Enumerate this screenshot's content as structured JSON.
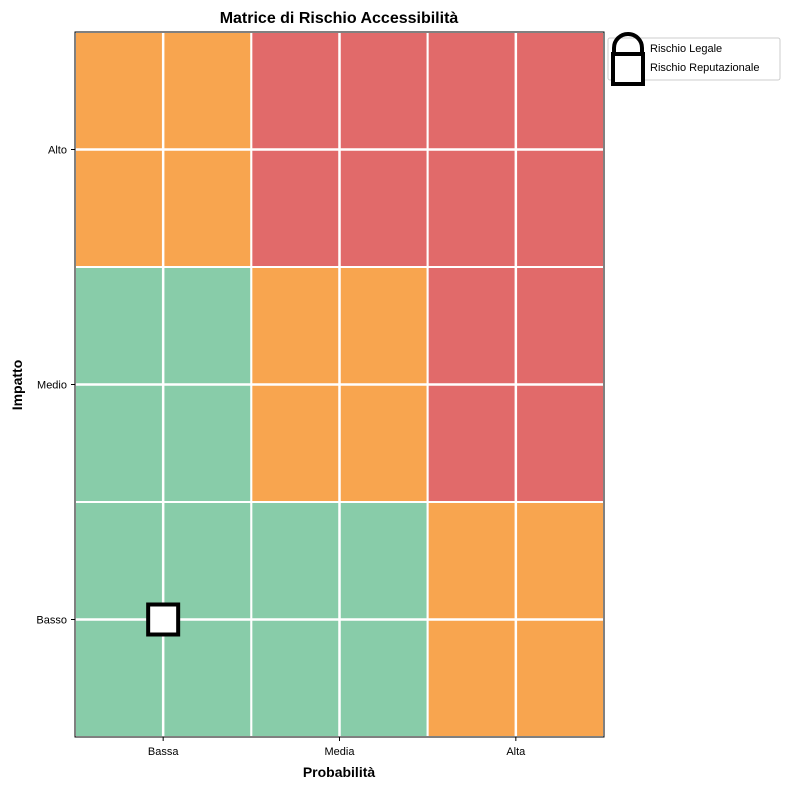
{
  "chart_data": {
    "type": "heatmap",
    "title": "Matrice di Rischio Accessibilità",
    "xlabel": "Probabilità",
    "ylabel": "Impatto",
    "x_categories": [
      "Bassa",
      "Media",
      "Alta"
    ],
    "y_categories": [
      "Basso",
      "Medio",
      "Alto"
    ],
    "grid": true,
    "cells": [
      {
        "x": "Bassa",
        "y": "Basso",
        "level": "basso"
      },
      {
        "x": "Media",
        "y": "Basso",
        "level": "basso"
      },
      {
        "x": "Alta",
        "y": "Basso",
        "level": "medio"
      },
      {
        "x": "Bassa",
        "y": "Medio",
        "level": "basso"
      },
      {
        "x": "Media",
        "y": "Medio",
        "level": "medio"
      },
      {
        "x": "Alta",
        "y": "Medio",
        "level": "alto"
      },
      {
        "x": "Bassa",
        "y": "Alto",
        "level": "medio"
      },
      {
        "x": "Media",
        "y": "Alto",
        "level": "alto"
      },
      {
        "x": "Alta",
        "y": "Alto",
        "level": "alto"
      }
    ],
    "level_colors": {
      "basso": "#88cca9",
      "medio": "#f8a54f",
      "alto": "#e16a6a"
    },
    "points": [
      {
        "series": "Rischio Reputazionale",
        "x": "Bassa",
        "y": "Basso",
        "marker": "square"
      }
    ],
    "legend": {
      "position": "top-right-outside",
      "items": [
        {
          "label": "Rischio Legale",
          "marker": "lock-icon"
        },
        {
          "label": "Rischio Reputazionale",
          "marker": "square"
        }
      ]
    }
  }
}
